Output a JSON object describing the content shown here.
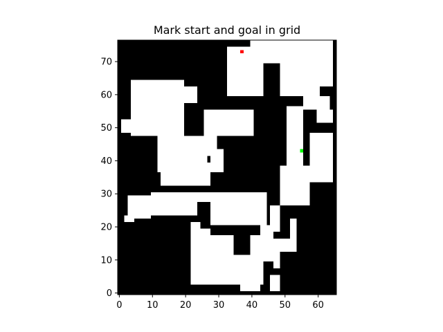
{
  "chart_data": {
    "type": "heatmap",
    "title": "Mark start and goal in grid",
    "xlabel": "",
    "ylabel": "",
    "grid_width": 66,
    "grid_height": 77,
    "xlim": [
      0,
      66
    ],
    "ylim": [
      0,
      77
    ],
    "x_ticks": [
      0,
      10,
      20,
      30,
      40,
      50,
      60
    ],
    "y_ticks": [
      0,
      10,
      20,
      30,
      40,
      50,
      60,
      70
    ],
    "grid": false,
    "colors": {
      "obstacle": "#000000",
      "free": "#ffffff",
      "start": "#ff0000",
      "goal": "#00ff00"
    },
    "free_regions": [
      [
        40,
        63,
        65,
        77
      ],
      [
        33,
        71,
        40,
        75
      ],
      [
        33,
        60,
        48,
        71
      ],
      [
        48,
        60,
        61,
        70
      ],
      [
        56,
        56,
        64,
        60
      ],
      [
        39,
        56,
        45,
        58
      ],
      [
        4,
        48,
        20,
        65
      ],
      [
        20,
        58,
        24,
        63
      ],
      [
        12,
        37,
        20,
        48
      ],
      [
        1,
        49,
        12,
        53
      ],
      [
        26,
        48,
        41,
        56
      ],
      [
        20,
        44,
        30,
        48
      ],
      [
        26,
        40,
        32,
        44
      ],
      [
        20,
        37,
        28,
        44
      ],
      [
        13,
        33,
        28,
        37
      ],
      [
        28,
        37,
        32,
        40
      ],
      [
        51,
        39,
        56,
        57
      ],
      [
        49,
        27,
        58,
        39
      ],
      [
        58,
        34,
        65,
        49
      ],
      [
        59,
        39,
        65,
        44
      ],
      [
        60,
        52,
        65,
        56
      ],
      [
        3,
        23,
        10,
        30
      ],
      [
        2,
        22,
        5,
        24
      ],
      [
        10,
        24,
        24,
        31
      ],
      [
        24,
        28,
        45,
        31
      ],
      [
        28,
        21,
        45,
        28
      ],
      [
        43,
        17,
        47,
        21
      ],
      [
        22,
        9,
        28,
        22
      ],
      [
        22,
        3,
        44,
        10
      ],
      [
        28,
        10,
        47,
        18
      ],
      [
        47,
        8,
        52,
        17
      ],
      [
        37,
        1,
        43,
        4
      ],
      [
        46,
        1,
        49,
        6
      ],
      [
        52,
        10,
        56,
        23
      ],
      [
        46,
        19,
        49,
        27
      ]
    ],
    "obstacle_regions": [
      [
        39,
        56,
        47,
        60
      ],
      [
        43,
        43,
        51,
        53
      ],
      [
        35,
        12,
        40,
        18
      ],
      [
        25,
        20,
        28,
        24
      ],
      [
        27,
        40,
        28,
        42
      ],
      [
        44,
        60,
        49,
        70
      ],
      [
        54,
        13,
        56,
        24
      ],
      [
        49,
        3,
        56,
        13
      ]
    ],
    "start": [
      37,
      73
    ],
    "goal": [
      55,
      43
    ]
  }
}
